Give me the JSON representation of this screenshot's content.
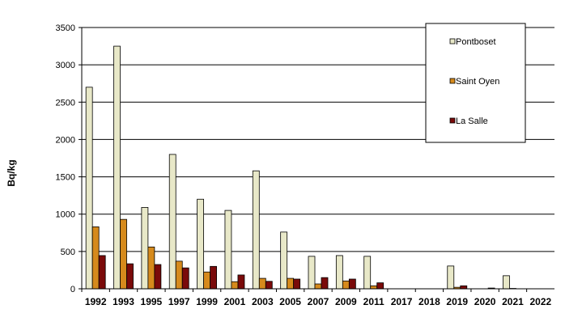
{
  "chart_data": {
    "type": "bar",
    "ylabel": "Bq/kg",
    "xlabel": "",
    "title": "",
    "ylim": [
      0,
      3500
    ],
    "yticks": [
      0,
      500,
      1000,
      1500,
      2000,
      2500,
      3000,
      3500
    ],
    "grid": true,
    "legend_position": "top-right",
    "categories": [
      "1992",
      "1993",
      "1995",
      "1997",
      "1999",
      "2001",
      "2003",
      "2005",
      "2007",
      "2009",
      "2011",
      "2017",
      "2018",
      "2019",
      "2020",
      "2021",
      "2022"
    ],
    "series": [
      {
        "name": "Pontboset",
        "color": "#e8e8c8",
        "values": [
          2700,
          3250,
          1090,
          1800,
          1200,
          1050,
          1580,
          760,
          435,
          445,
          435,
          0,
          0,
          305,
          0,
          175,
          0
        ]
      },
      {
        "name": "Saint Oyen",
        "color": "#d68a1c",
        "values": [
          830,
          930,
          560,
          370,
          225,
          95,
          140,
          140,
          65,
          105,
          40,
          0,
          0,
          20,
          0,
          5,
          0
        ]
      },
      {
        "name": "La Salle",
        "color": "#7a0a0a",
        "values": [
          445,
          335,
          325,
          280,
          300,
          185,
          100,
          130,
          150,
          130,
          80,
          0,
          0,
          40,
          10,
          0,
          0
        ]
      }
    ]
  }
}
